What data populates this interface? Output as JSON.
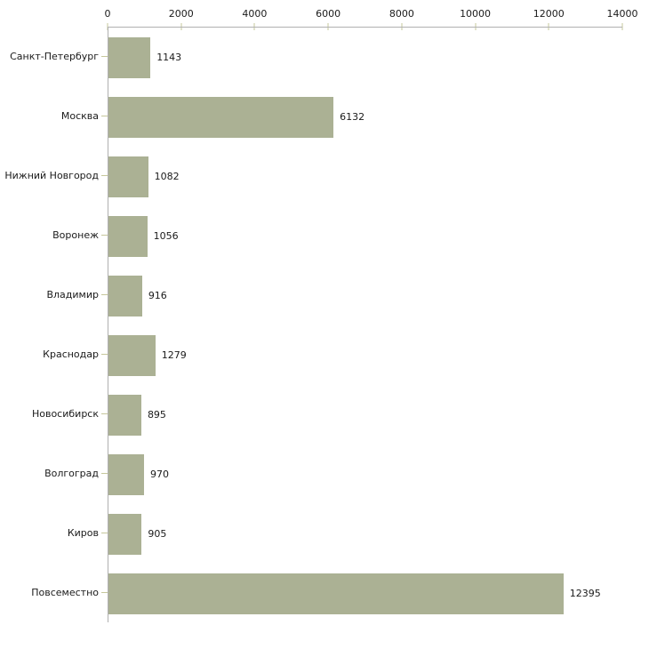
{
  "chart_data": {
    "type": "bar",
    "orientation": "horizontal",
    "title": "",
    "xlabel": "",
    "ylabel": "",
    "categories": [
      "Санкт-Петербург",
      "Москва",
      "Нижний Новгород",
      "Воронеж",
      "Владимир",
      "Краснодар",
      "Новосибирск",
      "Волгоград",
      "Киров",
      "Повсеместно"
    ],
    "values": [
      1143,
      6132,
      1082,
      1056,
      916,
      1279,
      895,
      970,
      905,
      12395
    ],
    "value_labels": [
      "1143",
      "6132",
      "1082",
      "1056",
      "916",
      "1279",
      "895",
      "970",
      "905",
      "12395"
    ],
    "x_ticks": [
      0,
      2000,
      4000,
      6000,
      8000,
      10000,
      12000,
      14000
    ],
    "x_tick_labels": [
      "0",
      "2000",
      "4000",
      "6000",
      "8000",
      "10000",
      "12000",
      "14000"
    ],
    "xlim": [
      0,
      14000
    ],
    "grid": false,
    "legend": "none",
    "axis_position": "top-left",
    "colors": {
      "bar": "#abb194",
      "axis_line": "#b0b0b0",
      "tick_mark": "#c6c79b",
      "text": "#1a1a1a",
      "background": "#ffffff"
    }
  }
}
